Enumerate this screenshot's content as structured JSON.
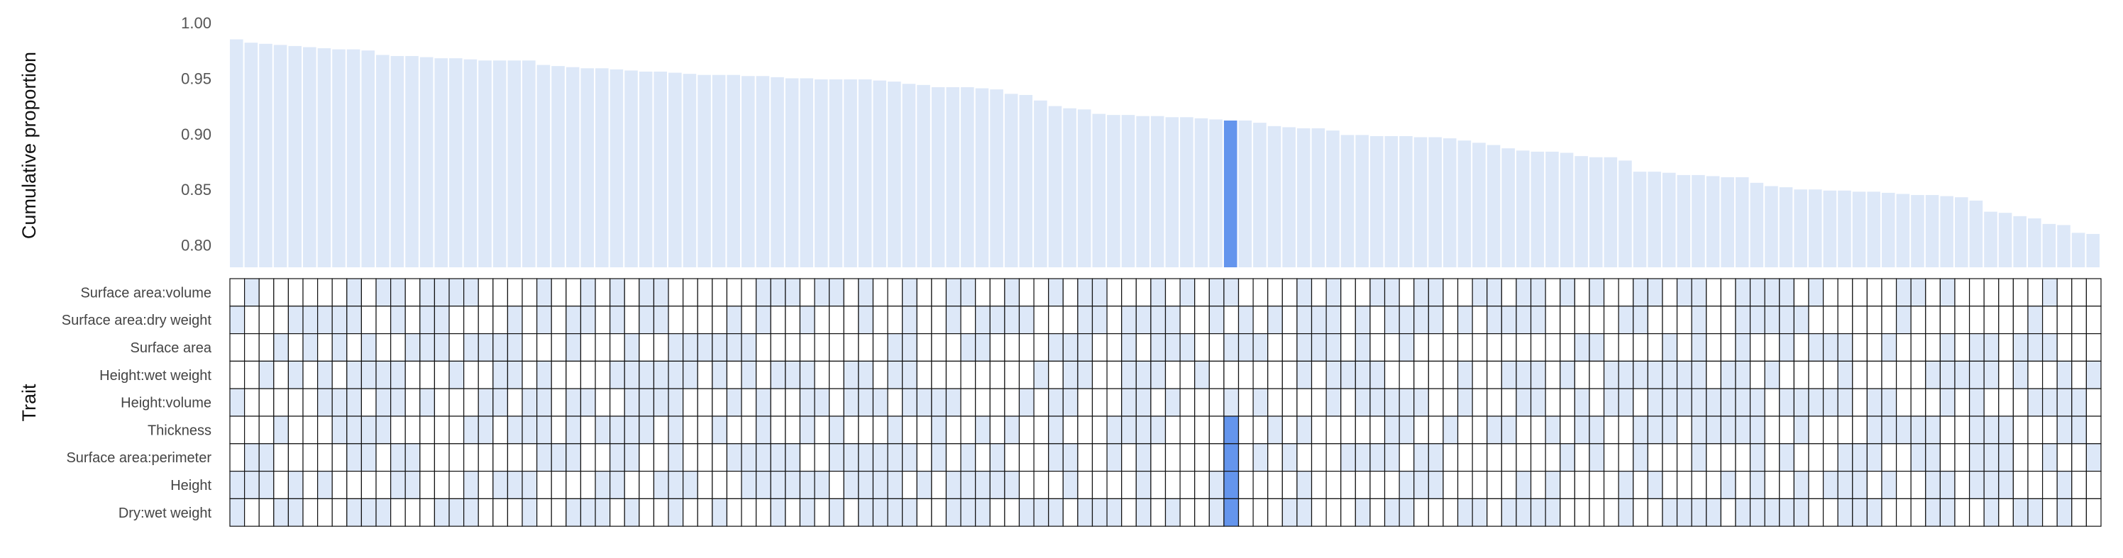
{
  "chart_data": {
    "type": "bar",
    "ylabel": "Cumulative proportion",
    "matrix_ylabel": "Trait",
    "ylim": [
      0.78,
      1.0
    ],
    "yticks": [
      "1.00",
      "0.95",
      "0.90",
      "0.85",
      "0.80"
    ],
    "grid": false,
    "colors": {
      "bar": "#dde8f8",
      "highlight": "#6495ed",
      "matrix_on": "#dde8f8",
      "matrix_off": "#ffffff",
      "matrix_line": "#111111"
    },
    "highlight_index": 68,
    "values": [
      0.985,
      0.982,
      0.981,
      0.98,
      0.979,
      0.978,
      0.977,
      0.976,
      0.976,
      0.975,
      0.971,
      0.97,
      0.97,
      0.969,
      0.968,
      0.968,
      0.967,
      0.966,
      0.966,
      0.966,
      0.966,
      0.962,
      0.961,
      0.96,
      0.959,
      0.959,
      0.958,
      0.957,
      0.956,
      0.956,
      0.955,
      0.954,
      0.953,
      0.953,
      0.953,
      0.952,
      0.952,
      0.951,
      0.95,
      0.95,
      0.949,
      0.949,
      0.949,
      0.949,
      0.948,
      0.947,
      0.945,
      0.944,
      0.942,
      0.942,
      0.942,
      0.941,
      0.94,
      0.936,
      0.935,
      0.93,
      0.925,
      0.923,
      0.922,
      0.918,
      0.917,
      0.917,
      0.916,
      0.916,
      0.915,
      0.915,
      0.914,
      0.913,
      0.912,
      0.912,
      0.91,
      0.907,
      0.906,
      0.905,
      0.905,
      0.903,
      0.899,
      0.899,
      0.898,
      0.898,
      0.898,
      0.897,
      0.897,
      0.896,
      0.894,
      0.892,
      0.89,
      0.887,
      0.885,
      0.884,
      0.884,
      0.883,
      0.88,
      0.879,
      0.879,
      0.876,
      0.866,
      0.866,
      0.865,
      0.863,
      0.863,
      0.862,
      0.861,
      0.861,
      0.856,
      0.853,
      0.852,
      0.85,
      0.85,
      0.849,
      0.849,
      0.848,
      0.848,
      0.847,
      0.846,
      0.845,
      0.845,
      0.844,
      0.843,
      0.84,
      0.83,
      0.829,
      0.826,
      0.824,
      0.819,
      0.818,
      0.811,
      0.81
    ],
    "traits": [
      "Surface area:volume",
      "Surface area:dry weight",
      "Surface area",
      "Height:wet weight",
      "Height:volume",
      "Thickness",
      "Surface area:perimeter",
      "Height",
      "Dry:wet weight"
    ],
    "matrix_seed": 7,
    "matrix_fill_fraction": 0.45
  }
}
